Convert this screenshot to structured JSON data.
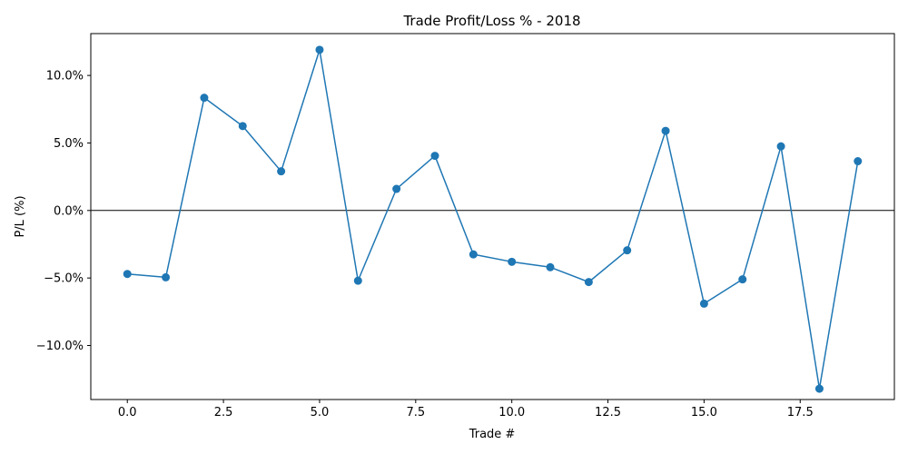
{
  "chart_data": {
    "type": "line",
    "title": "Trade Profit/Loss % - 2018",
    "xlabel": "Trade #",
    "ylabel": "P/L (%)",
    "xlim": [
      -0.95,
      19.95
    ],
    "ylim": [
      -14.0,
      13.1
    ],
    "xticks": [
      0.0,
      2.5,
      5.0,
      7.5,
      10.0,
      12.5,
      15.0,
      17.5
    ],
    "xtick_labels": [
      "0.0",
      "2.5",
      "5.0",
      "7.5",
      "10.0",
      "12.5",
      "15.0",
      "17.5"
    ],
    "yticks": [
      -10,
      -5,
      0,
      5,
      10
    ],
    "ytick_labels": [
      "−10.0%",
      "−5.0%",
      "0.0%",
      "5.0%",
      "10.0%"
    ],
    "reference_line_y": 0,
    "grid": false,
    "line_color": "#1f77b4",
    "series": [
      {
        "x": [
          0,
          1,
          2,
          3,
          4,
          5,
          6,
          7,
          8,
          9,
          10,
          11,
          12,
          13,
          14,
          15,
          16,
          17,
          18,
          19
        ],
        "values": [
          -4.7,
          -4.95,
          8.35,
          6.25,
          2.9,
          11.9,
          -5.2,
          1.6,
          4.05,
          -3.25,
          -3.8,
          -4.2,
          -5.3,
          -2.95,
          5.9,
          -6.9,
          -5.1,
          4.75,
          -13.2,
          3.65
        ]
      }
    ]
  }
}
